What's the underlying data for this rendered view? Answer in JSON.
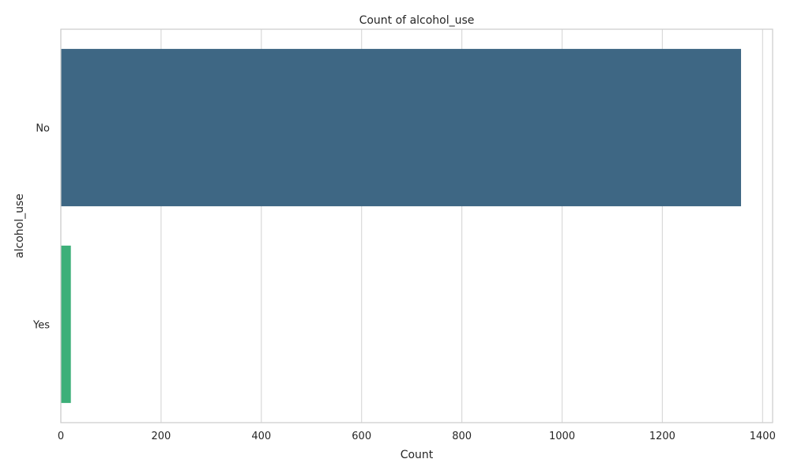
{
  "chart_data": {
    "type": "bar",
    "orientation": "horizontal",
    "title": "Count of alcohol_use",
    "xlabel": "Count",
    "ylabel": "alcohol_use",
    "categories": [
      "No",
      "Yes"
    ],
    "values": [
      1357,
      20
    ],
    "colors": [
      "#3e6784",
      "#3daf79"
    ],
    "xlim": [
      0,
      1420
    ],
    "xticks": [
      0,
      200,
      400,
      600,
      800,
      1000,
      1200,
      1400
    ],
    "grid": "vertical",
    "legend": "none"
  }
}
